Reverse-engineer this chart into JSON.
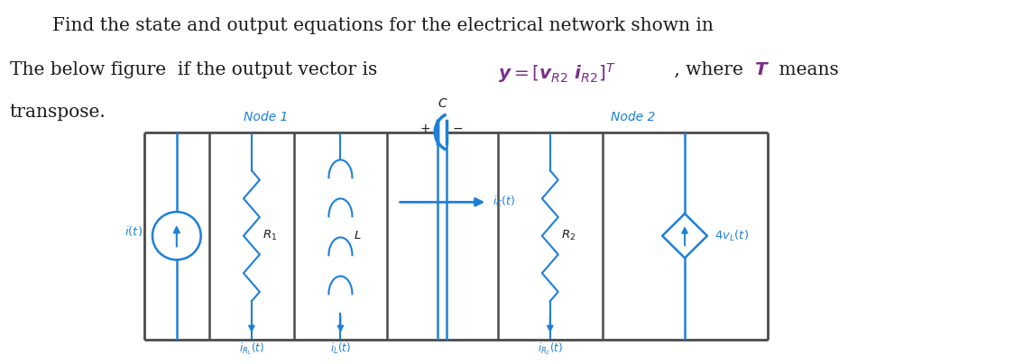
{
  "text_color": "#1a1a1a",
  "blue_color": "#1E7FD8",
  "purple_color": "#7B2D8B",
  "circuit_line_color": "#4a4a4a",
  "bg_color": "#ffffff",
  "fig_width": 11.34,
  "fig_height": 4.04,
  "line1": "Find the state and output equations for the electrical network shown in",
  "line2a": "The below figure  if the output vector is  ",
  "line2b": " , where ",
  "line2c": " means",
  "line3": "transpose.",
  "node1": "Node 1",
  "node2": "Node 2",
  "C_lbl": "C",
  "plus_lbl": "+",
  "minus_lbl": "−"
}
